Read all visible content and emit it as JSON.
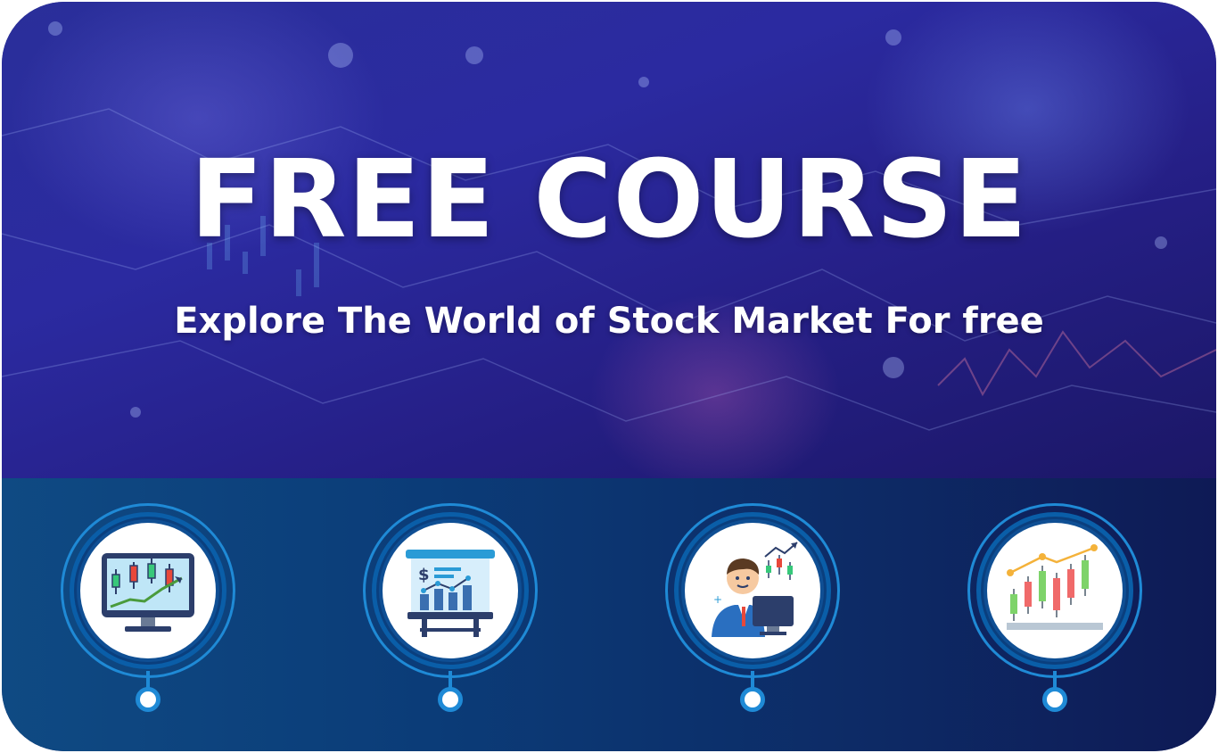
{
  "hero": {
    "title": "FREE COURSE",
    "subtitle": "Explore The World of Stock Market For free"
  },
  "features": [
    {
      "icon": "candlestick-monitor-icon"
    },
    {
      "icon": "presentation-board-icon"
    },
    {
      "icon": "trader-at-desk-icon"
    },
    {
      "icon": "candlestick-chart-icon"
    }
  ],
  "colors": {
    "hero_bg": "#2b2aa0",
    "band_bg": "#0b3c78",
    "accent_ring": "#1f8ad6",
    "title_text": "#ffffff"
  }
}
